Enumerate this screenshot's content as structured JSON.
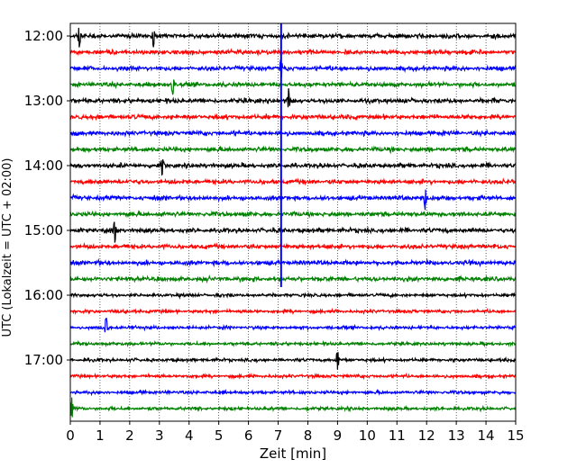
{
  "chart_data": {
    "type": "line",
    "title": "",
    "xlabel": "Zeit  [min]",
    "ylabel": "UTC (Lokalzeit = UTC + 02:00)",
    "xlim": [
      0,
      15
    ],
    "x_ticks": [
      0,
      1,
      2,
      3,
      4,
      5,
      6,
      7,
      8,
      9,
      10,
      11,
      12,
      13,
      14,
      15
    ],
    "x_tick_labels": [
      "0",
      "1",
      "2",
      "3",
      "4",
      "5",
      "6",
      "7",
      "8",
      "9",
      "10",
      "11",
      "12",
      "13",
      "14",
      "15"
    ],
    "y_tick_labels": [
      "12:00",
      "13:00",
      "14:00",
      "15:00",
      "16:00",
      "17:00"
    ],
    "grid": "vertical dotted",
    "trace_interval_min": 15,
    "trace_colors": [
      "#000000",
      "#ff0000",
      "#0000ff",
      "#008000"
    ],
    "traces": [
      {
        "start": "12:00"
      },
      {
        "start": "12:15"
      },
      {
        "start": "12:30"
      },
      {
        "start": "12:45"
      },
      {
        "start": "13:00"
      },
      {
        "start": "13:15"
      },
      {
        "start": "13:30"
      },
      {
        "start": "13:45"
      },
      {
        "start": "14:00"
      },
      {
        "start": "14:15"
      },
      {
        "start": "14:30"
      },
      {
        "start": "14:45"
      },
      {
        "start": "15:00"
      },
      {
        "start": "15:15"
      },
      {
        "start": "15:30"
      },
      {
        "start": "15:45"
      },
      {
        "start": "16:00"
      },
      {
        "start": "16:15"
      },
      {
        "start": "16:30"
      },
      {
        "start": "16:45"
      },
      {
        "start": "17:00"
      },
      {
        "start": "17:15"
      },
      {
        "start": "17:30"
      },
      {
        "start": "17:45"
      }
    ],
    "spikes": [
      {
        "trace": 0,
        "t": 0.3
      },
      {
        "trace": 0,
        "t": 2.8
      },
      {
        "trace": 2,
        "t": 7.1
      },
      {
        "trace": 3,
        "t": 3.45
      },
      {
        "trace": 4,
        "t": 7.35
      },
      {
        "trace": 8,
        "t": 3.1
      },
      {
        "trace": 10,
        "t": 11.95
      },
      {
        "trace": 12,
        "t": 1.5
      },
      {
        "trace": 18,
        "t": 1.2
      },
      {
        "trace": 20,
        "t": 9.0
      },
      {
        "trace": 23,
        "t": 0.05
      }
    ],
    "vertical_event": {
      "t": 7.1,
      "color": "#0000ff",
      "from_trace": 0,
      "to_trace": 15.5
    }
  }
}
